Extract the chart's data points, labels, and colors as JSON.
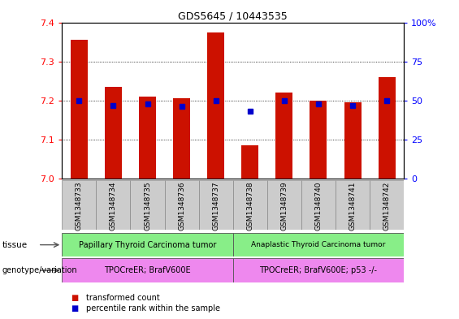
{
  "title": "GDS5645 / 10443535",
  "samples": [
    "GSM1348733",
    "GSM1348734",
    "GSM1348735",
    "GSM1348736",
    "GSM1348737",
    "GSM1348738",
    "GSM1348739",
    "GSM1348740",
    "GSM1348741",
    "GSM1348742"
  ],
  "transformed_count": [
    7.355,
    7.235,
    7.21,
    7.205,
    7.375,
    7.085,
    7.22,
    7.2,
    7.195,
    7.26
  ],
  "percentile_rank": [
    50,
    47,
    48,
    46,
    50,
    43,
    50,
    48,
    47,
    50
  ],
  "ylim": [
    7.0,
    7.4
  ],
  "yticks_left": [
    7.0,
    7.1,
    7.2,
    7.3,
    7.4
  ],
  "yticks_right": [
    0,
    25,
    50,
    75,
    100
  ],
  "bar_color": "#cc1100",
  "dot_color": "#0000cc",
  "tissue_group1": "Papillary Thyroid Carcinoma tumor",
  "tissue_group2": "Anaplastic Thyroid Carcinoma tumor",
  "tissue_color": "#88ee88",
  "genotype_group1": "TPOCreER; BrafV600E",
  "genotype_group2": "TPOCreER; BrafV600E; p53 -/-",
  "genotype_color": "#ee88ee",
  "label_tissue": "tissue",
  "label_genotype": "genotype/variation",
  "legend_bar": "transformed count",
  "legend_dot": "percentile rank within the sample",
  "group1_count": 5,
  "group2_count": 5,
  "bar_width": 0.5,
  "tick_bg": "#cccccc"
}
